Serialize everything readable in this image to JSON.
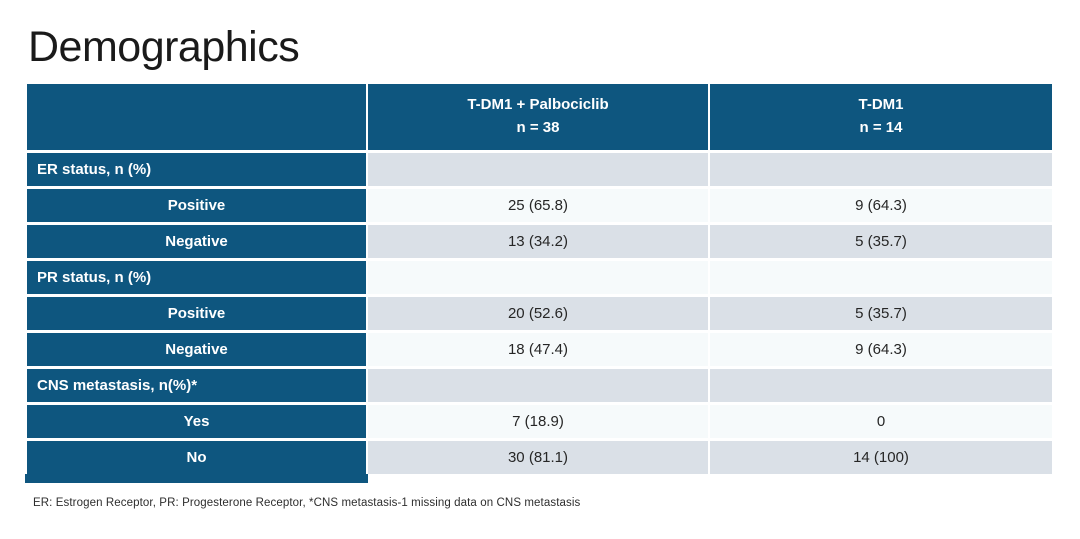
{
  "slide": {
    "title": "Demographics",
    "footnote": "ER: Estrogen Receptor, PR: Progesterone Receptor, *CNS metastasis-1 missing data on CNS metastasis"
  },
  "table": {
    "columns": [
      {
        "label": "T-DM1 + Palbociclib",
        "n": "n = 38"
      },
      {
        "label": "T-DM1",
        "n": "n = 14"
      }
    ],
    "rows": [
      {
        "type": "section",
        "label": "ER status, n (%)",
        "values": [
          "",
          ""
        ]
      },
      {
        "type": "sub",
        "label": "Positive",
        "values": [
          "25 (65.8)",
          "9 (64.3)"
        ]
      },
      {
        "type": "sub",
        "label": "Negative",
        "values": [
          "13 (34.2)",
          "5 (35.7)"
        ]
      },
      {
        "type": "section",
        "label": "PR status, n (%)",
        "values": [
          "",
          ""
        ]
      },
      {
        "type": "sub",
        "label": "Positive",
        "values": [
          "20 (52.6)",
          "5 (35.7)"
        ]
      },
      {
        "type": "sub",
        "label": "Negative",
        "values": [
          "18 (47.4)",
          "9 (64.3)"
        ]
      },
      {
        "type": "section",
        "label": "CNS metastasis, n(%)*",
        "values": [
          "",
          ""
        ]
      },
      {
        "type": "sub",
        "label": "Yes",
        "values": [
          "7 (18.9)",
          "0"
        ]
      },
      {
        "type": "sub",
        "label": "No",
        "values": [
          "30 (81.1)",
          "14 (100)"
        ]
      }
    ]
  },
  "colors": {
    "header_blue": "#0e567f",
    "row_gray": "#dae0e7",
    "row_light": "#f6fafb",
    "text_dark": "#262626"
  }
}
